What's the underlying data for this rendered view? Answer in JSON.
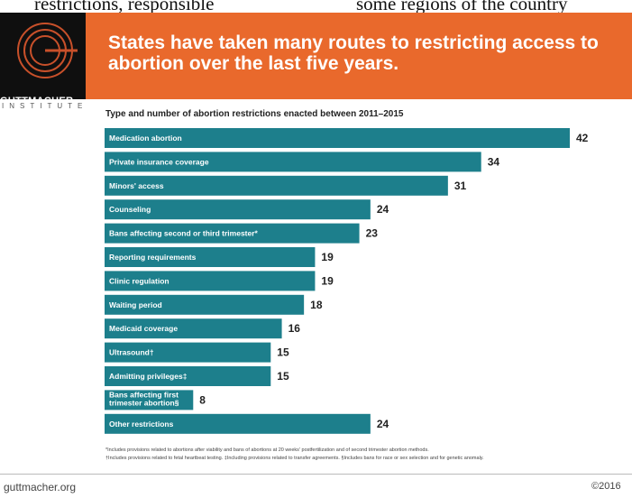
{
  "top_text": {
    "left": "restrictions, responsible",
    "right": "some regions of the country"
  },
  "logo": {
    "name": "GUTTMACHER",
    "sub": "INSTITUTE"
  },
  "headline": "States have taken many routes to restricting access to abortion over the last five years.",
  "chart_data": {
    "type": "bar",
    "orientation": "horizontal",
    "title": "Type and number of abortion restrictions enacted between 2011–2015",
    "xlim": [
      0,
      42
    ],
    "bar_color": "#1d7f8c",
    "grid": false,
    "categories": [
      [
        "Medication abortion"
      ],
      [
        "Private insurance coverage"
      ],
      [
        "Minors' access"
      ],
      [
        "Counseling"
      ],
      [
        "Bans affecting second or third trimester*"
      ],
      [
        "Reporting requirements"
      ],
      [
        "Clinic regulation"
      ],
      [
        "Waiting period"
      ],
      [
        "Medicaid coverage"
      ],
      [
        "Ultrasound†"
      ],
      [
        "Admitting privileges‡"
      ],
      [
        "Bans affecting first",
        "trimester abortion§"
      ],
      [
        "Other restrictions"
      ]
    ],
    "values": [
      42,
      34,
      31,
      24,
      23,
      19,
      19,
      18,
      16,
      15,
      15,
      8,
      24
    ]
  },
  "footnotes": [
    "*Includes provisions related to abortions after viability and bans of abortions at 20 weeks' postfertilization and of second trimester abortion methods.",
    "†Includes provisions related to fetal heartbeat testing.  ‡Including provisions related to transfer agreements.  §Includes bans for race or sex selection and for genetic anomaly."
  ],
  "footer": {
    "site": "guttmacher.org",
    "copyright": "©2016"
  }
}
